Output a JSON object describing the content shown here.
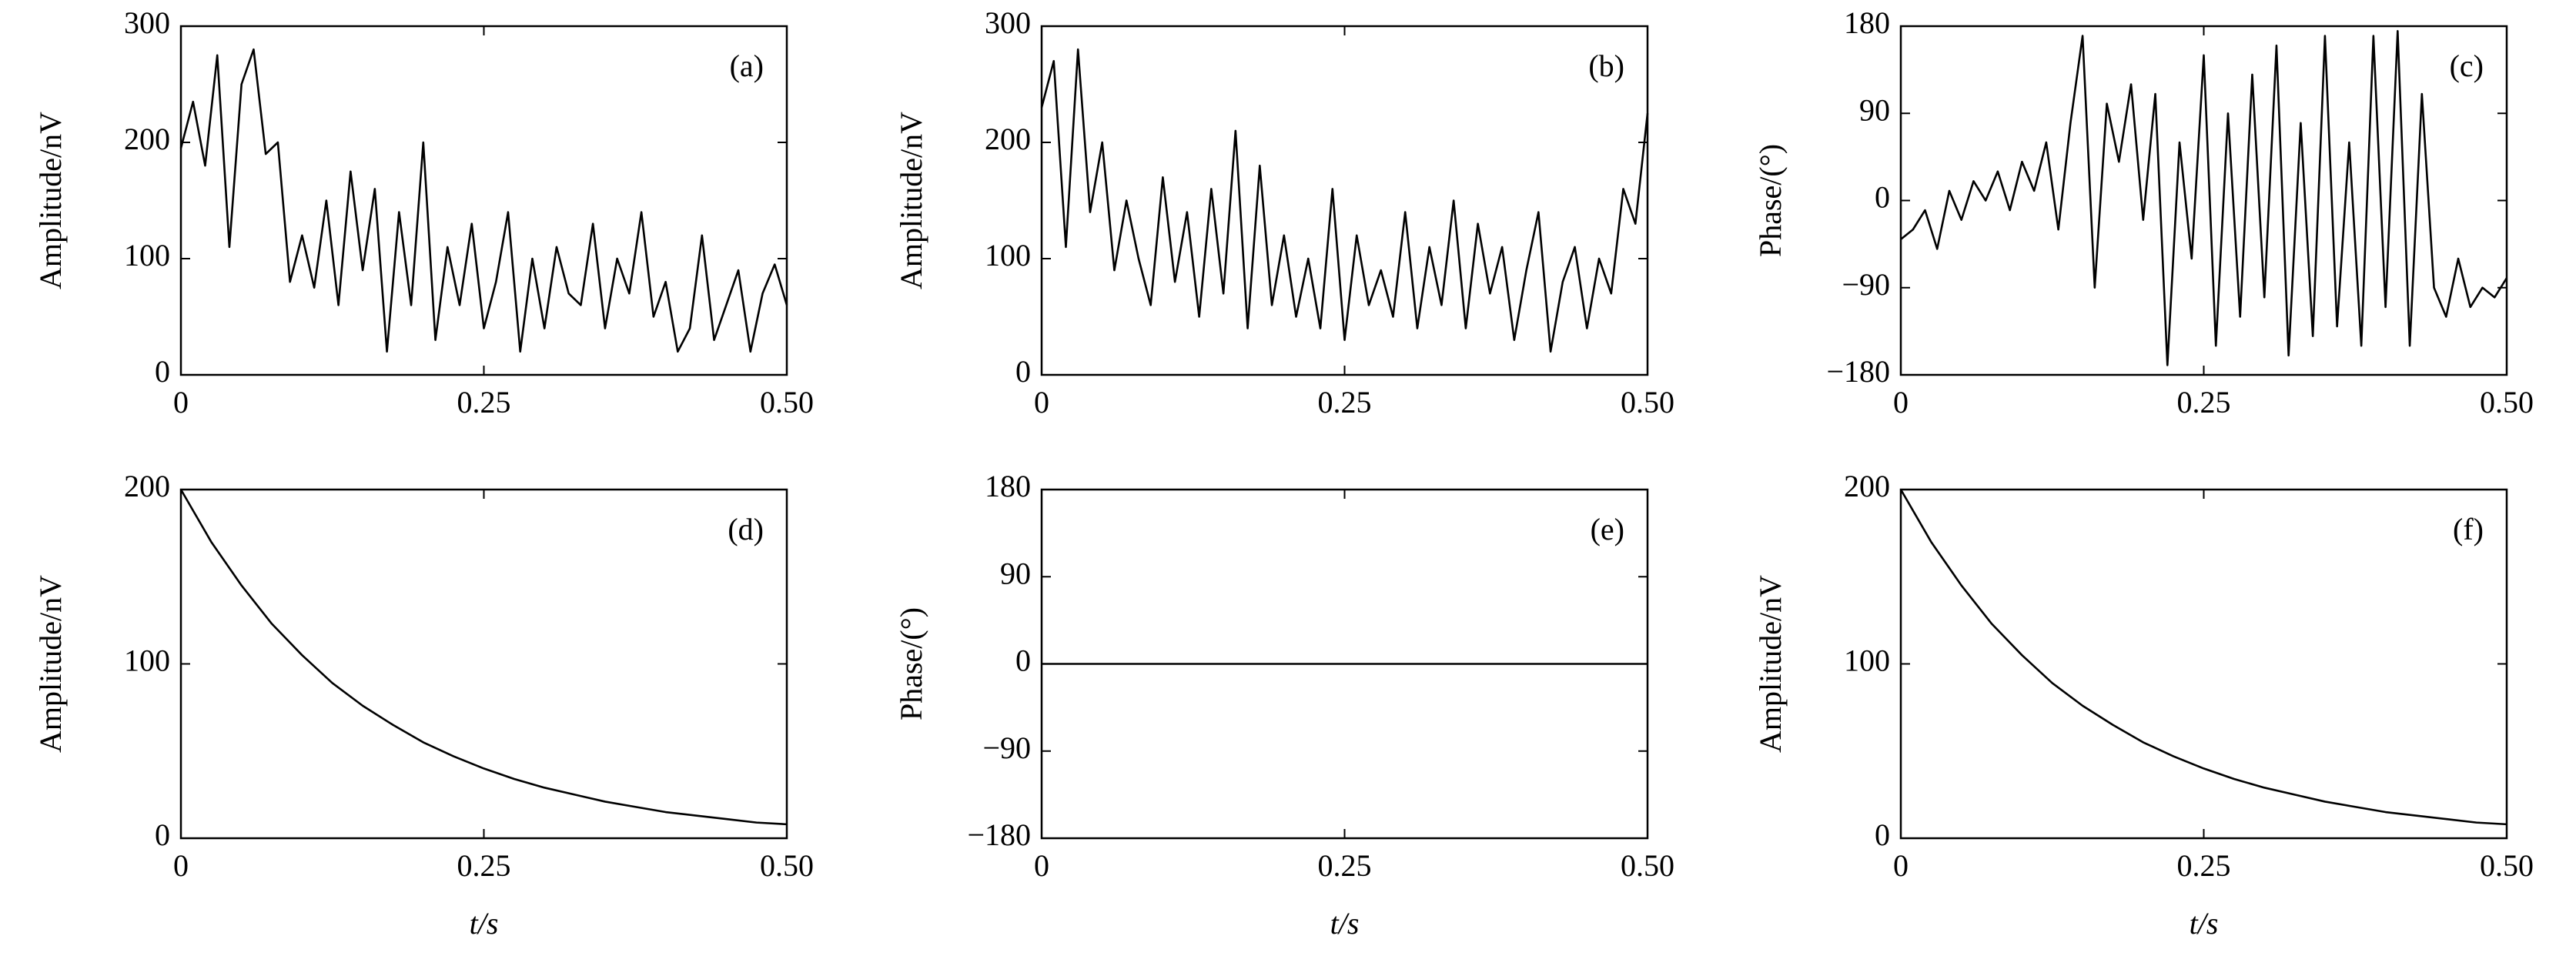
{
  "chart_data": [
    {
      "type": "line",
      "panel": "(a)",
      "ylabel": "Amplitude/nV",
      "color": "#000000",
      "xlim": [
        0,
        0.5
      ],
      "xticks": [
        0,
        0.25,
        {
          "value": 0.5,
          "label": "0.50"
        }
      ],
      "ylim": [
        0,
        300
      ],
      "yticks": [
        0,
        100,
        200,
        300
      ],
      "x": [
        0,
        0.01,
        0.02,
        0.03,
        0.04,
        0.05,
        0.06,
        0.07,
        0.08,
        0.09,
        0.1,
        0.11,
        0.12,
        0.13,
        0.14,
        0.15,
        0.16,
        0.17,
        0.18,
        0.19,
        0.2,
        0.21,
        0.22,
        0.23,
        0.24,
        0.25,
        0.26,
        0.27,
        0.28,
        0.29,
        0.3,
        0.31,
        0.32,
        0.33,
        0.34,
        0.35,
        0.36,
        0.37,
        0.38,
        0.39,
        0.4,
        0.41,
        0.42,
        0.43,
        0.44,
        0.45,
        0.46,
        0.47,
        0.48,
        0.49,
        0.5
      ],
      "values": [
        195,
        235,
        180,
        275,
        110,
        250,
        280,
        190,
        200,
        80,
        120,
        75,
        150,
        60,
        175,
        90,
        160,
        20,
        140,
        60,
        200,
        30,
        110,
        60,
        130,
        40,
        80,
        140,
        20,
        100,
        40,
        110,
        70,
        60,
        130,
        40,
        100,
        70,
        140,
        50,
        80,
        20,
        40,
        120,
        30,
        60,
        90,
        20,
        70,
        95,
        60
      ]
    },
    {
      "type": "line",
      "panel": "(b)",
      "ylabel": "Amplitude/nV",
      "color": "#000000",
      "xlim": [
        0,
        0.5
      ],
      "xticks": [
        0,
        0.25,
        {
          "value": 0.5,
          "label": "0.50"
        }
      ],
      "ylim": [
        0,
        300
      ],
      "yticks": [
        0,
        100,
        200,
        300
      ],
      "x": [
        0,
        0.01,
        0.02,
        0.03,
        0.04,
        0.05,
        0.06,
        0.07,
        0.08,
        0.09,
        0.1,
        0.11,
        0.12,
        0.13,
        0.14,
        0.15,
        0.16,
        0.17,
        0.18,
        0.19,
        0.2,
        0.21,
        0.22,
        0.23,
        0.24,
        0.25,
        0.26,
        0.27,
        0.28,
        0.29,
        0.3,
        0.31,
        0.32,
        0.33,
        0.34,
        0.35,
        0.36,
        0.37,
        0.38,
        0.39,
        0.4,
        0.41,
        0.42,
        0.43,
        0.44,
        0.45,
        0.46,
        0.47,
        0.48,
        0.49,
        0.5
      ],
      "values": [
        230,
        270,
        110,
        280,
        140,
        200,
        90,
        150,
        100,
        60,
        170,
        80,
        140,
        50,
        160,
        70,
        210,
        40,
        180,
        60,
        120,
        50,
        100,
        40,
        160,
        30,
        120,
        60,
        90,
        50,
        140,
        40,
        110,
        60,
        150,
        40,
        130,
        70,
        110,
        30,
        90,
        140,
        20,
        80,
        110,
        40,
        100,
        70,
        160,
        130,
        225
      ]
    },
    {
      "type": "line",
      "panel": "(c)",
      "ylabel": "Phase/(°)",
      "color": "#000000",
      "xlim": [
        0,
        0.5
      ],
      "xticks": [
        0,
        0.25,
        {
          "value": 0.5,
          "label": "0.50"
        }
      ],
      "ylim": [
        -180,
        180
      ],
      "yticks": [
        {
          "value": -180,
          "label": "−180"
        },
        {
          "value": -90,
          "label": "−90"
        },
        0,
        90,
        180
      ],
      "x": [
        0,
        0.01,
        0.02,
        0.03,
        0.04,
        0.05,
        0.06,
        0.07,
        0.08,
        0.09,
        0.1,
        0.11,
        0.12,
        0.13,
        0.14,
        0.15,
        0.16,
        0.17,
        0.18,
        0.19,
        0.2,
        0.21,
        0.22,
        0.23,
        0.24,
        0.25,
        0.26,
        0.27,
        0.28,
        0.29,
        0.3,
        0.31,
        0.32,
        0.33,
        0.34,
        0.35,
        0.36,
        0.37,
        0.38,
        0.39,
        0.4,
        0.41,
        0.42,
        0.43,
        0.44,
        0.45,
        0.46,
        0.47,
        0.48,
        0.49,
        0.5
      ],
      "values": [
        -40,
        -30,
        -10,
        -50,
        10,
        -20,
        20,
        0,
        30,
        -10,
        40,
        10,
        60,
        -30,
        80,
        170,
        -90,
        100,
        40,
        120,
        -20,
        110,
        -170,
        60,
        -60,
        150,
        -150,
        90,
        -120,
        130,
        -100,
        160,
        -160,
        80,
        -140,
        170,
        -130,
        60,
        -150,
        170,
        -110,
        175,
        -150,
        110,
        -90,
        -120,
        -60,
        -110,
        -90,
        -100,
        -80
      ]
    },
    {
      "type": "line",
      "panel": "(d)",
      "ylabel": "Amplitude/nV",
      "xlabel": "t/s",
      "color": "#000000",
      "xlim": [
        0,
        0.5
      ],
      "xticks": [
        0,
        0.25,
        {
          "value": 0.5,
          "label": "0.50"
        }
      ],
      "ylim": [
        0,
        200
      ],
      "yticks": [
        0,
        100,
        200
      ],
      "x": [
        0,
        0.025,
        0.05,
        0.075,
        0.1,
        0.125,
        0.15,
        0.175,
        0.2,
        0.225,
        0.25,
        0.275,
        0.3,
        0.325,
        0.35,
        0.375,
        0.4,
        0.425,
        0.45,
        0.475,
        0.5
      ],
      "values": [
        200,
        170,
        145,
        123,
        105,
        89,
        76,
        65,
        55,
        47,
        40,
        34,
        29,
        25,
        21,
        18,
        15,
        13,
        11,
        9,
        8
      ]
    },
    {
      "type": "line",
      "panel": "(e)",
      "ylabel": "Phase/(°)",
      "xlabel": "t/s",
      "color": "#000000",
      "xlim": [
        0,
        0.5
      ],
      "xticks": [
        0,
        0.25,
        {
          "value": 0.5,
          "label": "0.50"
        }
      ],
      "ylim": [
        -180,
        180
      ],
      "yticks": [
        {
          "value": -180,
          "label": "−180"
        },
        {
          "value": -90,
          "label": "−90"
        },
        0,
        90,
        180
      ],
      "x": [
        0,
        0.5
      ],
      "values": [
        0,
        0
      ]
    },
    {
      "type": "line",
      "panel": "(f)",
      "ylabel": "Amplitude/nV",
      "xlabel": "t/s",
      "color": "#000000",
      "xlim": [
        0,
        0.5
      ],
      "xticks": [
        0,
        0.25,
        {
          "value": 0.5,
          "label": "0.50"
        }
      ],
      "ylim": [
        0,
        200
      ],
      "yticks": [
        0,
        100,
        200
      ],
      "x": [
        0,
        0.025,
        0.05,
        0.075,
        0.1,
        0.125,
        0.15,
        0.175,
        0.2,
        0.225,
        0.25,
        0.275,
        0.3,
        0.325,
        0.35,
        0.375,
        0.4,
        0.425,
        0.45,
        0.475,
        0.5
      ],
      "values": [
        200,
        170,
        145,
        123,
        105,
        89,
        76,
        65,
        55,
        47,
        40,
        34,
        29,
        25,
        21,
        18,
        15,
        13,
        11,
        9,
        8
      ]
    }
  ]
}
